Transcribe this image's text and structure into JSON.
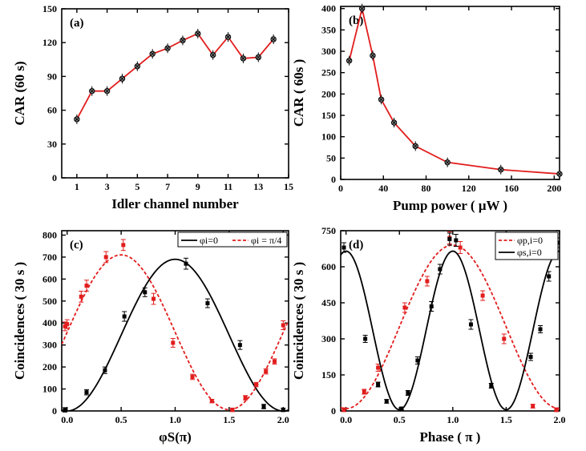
{
  "colors": {
    "red": "#e11d1d",
    "black": "#000000",
    "marker_fill": "#888888"
  },
  "chart_data": [
    {
      "id": "a",
      "type": "line",
      "panel_label": "(a)",
      "xlabel": "Idler channel number",
      "ylabel": "CAR (60 s)",
      "xlim": [
        0,
        15
      ],
      "ylim": [
        0,
        150
      ],
      "xticks": [
        1,
        3,
        5,
        7,
        9,
        11,
        13,
        15
      ],
      "yticks": [
        0,
        30,
        60,
        90,
        120,
        150
      ],
      "x": [
        1,
        2,
        3,
        4,
        5,
        6,
        7,
        8,
        9,
        10,
        11,
        12,
        13,
        14
      ],
      "series": [
        {
          "values": [
            52,
            77,
            77,
            88,
            99,
            110,
            115,
            122,
            128,
            109,
            125,
            106,
            107,
            123
          ],
          "color": "#e11d1d",
          "marker": "circle-x"
        }
      ]
    },
    {
      "id": "b",
      "type": "line",
      "panel_label": "(b)",
      "xlabel": "Pump power ( μW )",
      "ylabel": "CAR ( 60s )",
      "xlim": [
        0,
        205
      ],
      "ylim": [
        0,
        405
      ],
      "xticks": [
        0,
        40,
        80,
        120,
        160,
        200
      ],
      "yticks": [
        0,
        50,
        100,
        150,
        200,
        250,
        300,
        350,
        400
      ],
      "x": [
        8,
        20,
        30,
        38,
        50,
        70,
        100,
        150,
        205
      ],
      "series": [
        {
          "values": [
            278,
            400,
            290,
            187,
            133,
            78,
            40,
            23,
            13
          ],
          "color": "#e11d1d",
          "marker": "circle-x"
        }
      ]
    },
    {
      "id": "c",
      "type": "scatter",
      "panel_label": "(c)",
      "xlabel": "φS(π)",
      "ylabel": "Coincidences ( 30 s )",
      "xlim": [
        -0.05,
        2.05
      ],
      "ylim": [
        0,
        820
      ],
      "xticks": [
        0.0,
        0.5,
        1.0,
        1.5,
        2.0
      ],
      "yticks": [
        0,
        100,
        200,
        300,
        400,
        500,
        600,
        700,
        800
      ],
      "legend": [
        "φi=0",
        "φi = π/4"
      ],
      "legend_position": "top-right",
      "series": [
        {
          "name": "φi=0",
          "color": "#000000",
          "fit": {
            "amplitude": 345,
            "offset": 345,
            "phase": 1.0
          },
          "x": [
            -0.02,
            0.18,
            0.35,
            0.53,
            0.72,
            1.1,
            1.3,
            1.6,
            1.82,
            2.0
          ],
          "y": [
            5,
            85,
            185,
            430,
            540,
            670,
            490,
            300,
            20,
            5
          ],
          "err": [
            10,
            12,
            15,
            22,
            20,
            25,
            20,
            20,
            10,
            8
          ]
        },
        {
          "name": "φi = π/4",
          "color": "#e11d1d",
          "fit": {
            "amplitude": 352,
            "offset": 358,
            "phase": 0.5
          },
          "x": [
            -0.02,
            0.0,
            0.13,
            0.18,
            0.36,
            0.52,
            0.8,
            0.98,
            1.16,
            1.34,
            1.53,
            1.65,
            1.75,
            1.84,
            1.92,
            2.0
          ],
          "y": [
            385,
            395,
            520,
            570,
            700,
            755,
            510,
            310,
            155,
            45,
            5,
            60,
            120,
            180,
            225,
            390
          ],
          "err": [
            20,
            20,
            25,
            25,
            25,
            25,
            25,
            20,
            12,
            8,
            8,
            10,
            10,
            12,
            12,
            20
          ]
        }
      ]
    },
    {
      "id": "d",
      "type": "scatter",
      "panel_label": "(d)",
      "xlabel": "Phase ( π )",
      "ylabel": "Coincidences ( 30 s )",
      "xlim": [
        -0.05,
        2.0
      ],
      "ylim": [
        0,
        750
      ],
      "xticks": [
        0.0,
        0.5,
        1.0,
        1.5,
        2.0
      ],
      "yticks": [
        0,
        150,
        300,
        450,
        600,
        750
      ],
      "legend": [
        "φp,i=0",
        "φs,i=0"
      ],
      "legend_position": "top-right",
      "series": [
        {
          "name": "φp,i=0",
          "color": "#e11d1d",
          "fit": {
            "amplitude": 340,
            "offset": 350,
            "period": 2.0,
            "phase": 1.0
          },
          "x": [
            -0.02,
            0.17,
            0.3,
            0.55,
            0.76,
            0.97,
            1.07,
            1.28,
            1.48,
            1.75,
            1.97
          ],
          "y": [
            5,
            80,
            180,
            430,
            540,
            720,
            680,
            480,
            300,
            20,
            5
          ],
          "err": [
            8,
            10,
            15,
            20,
            20,
            25,
            25,
            20,
            20,
            8,
            8
          ]
        },
        {
          "name": "φs,i=0",
          "color": "#000000",
          "fit": {
            "amplitude": 330,
            "offset": 335,
            "period": 1.0,
            "phase": 0.0
          },
          "x": [
            -0.02,
            0.18,
            0.3,
            0.38,
            0.52,
            0.58,
            0.67,
            0.8,
            0.88,
            0.97,
            1.03,
            1.17,
            1.36,
            1.73,
            1.82,
            1.9,
            1.98
          ],
          "y": [
            680,
            300,
            110,
            40,
            10,
            75,
            210,
            435,
            590,
            715,
            710,
            360,
            105,
            225,
            340,
            560,
            700
          ],
          "err": [
            20,
            15,
            10,
            8,
            6,
            10,
            15,
            20,
            20,
            25,
            25,
            20,
            10,
            15,
            15,
            20,
            20
          ]
        }
      ]
    }
  ]
}
